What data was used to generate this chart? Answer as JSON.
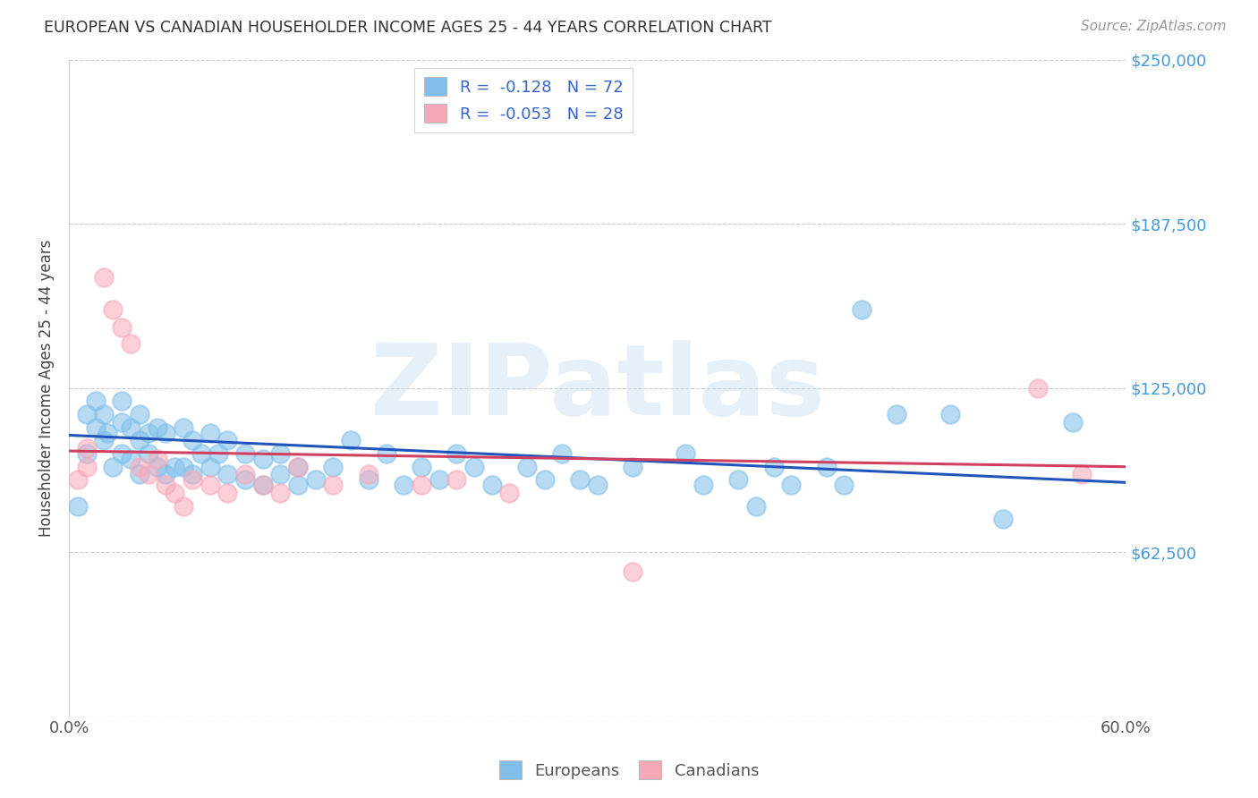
{
  "title": "EUROPEAN VS CANADIAN HOUSEHOLDER INCOME AGES 25 - 44 YEARS CORRELATION CHART",
  "source": "Source: ZipAtlas.com",
  "ylabel": "Householder Income Ages 25 - 44 years",
  "xlim": [
    0.0,
    0.6
  ],
  "ylim": [
    0,
    250000
  ],
  "yticks": [
    0,
    62500,
    125000,
    187500,
    250000
  ],
  "ytick_labels": [
    "",
    "$62,500",
    "$125,000",
    "$187,500",
    "$250,000"
  ],
  "xticks": [
    0.0,
    0.1,
    0.2,
    0.3,
    0.4,
    0.5,
    0.6
  ],
  "xtick_labels": [
    "0.0%",
    "",
    "",
    "",
    "",
    "",
    "60.0%"
  ],
  "europeans_R": -0.128,
  "europeans_N": 72,
  "canadians_R": -0.053,
  "canadians_N": 28,
  "european_color": "#7fbfea",
  "canadian_color": "#f9a8b8",
  "regression_blue": "#2255bb",
  "regression_pink": "#d04060",
  "background_color": "#ffffff",
  "watermark": "ZIPatlas",
  "eu_intercept": 107000,
  "eu_slope": -30000,
  "ca_intercept": 101000,
  "ca_slope": -10000,
  "europeans_x": [
    0.005,
    0.01,
    0.01,
    0.015,
    0.015,
    0.02,
    0.02,
    0.022,
    0.025,
    0.03,
    0.03,
    0.03,
    0.035,
    0.035,
    0.04,
    0.04,
    0.04,
    0.045,
    0.045,
    0.05,
    0.05,
    0.055,
    0.055,
    0.06,
    0.065,
    0.065,
    0.07,
    0.07,
    0.075,
    0.08,
    0.08,
    0.085,
    0.09,
    0.09,
    0.1,
    0.1,
    0.11,
    0.11,
    0.12,
    0.12,
    0.13,
    0.13,
    0.14,
    0.15,
    0.16,
    0.17,
    0.18,
    0.19,
    0.2,
    0.21,
    0.22,
    0.23,
    0.24,
    0.26,
    0.27,
    0.28,
    0.29,
    0.3,
    0.32,
    0.35,
    0.36,
    0.38,
    0.39,
    0.4,
    0.41,
    0.43,
    0.44,
    0.45,
    0.47,
    0.5,
    0.53,
    0.57
  ],
  "europeans_y": [
    80000,
    115000,
    100000,
    120000,
    110000,
    115000,
    105000,
    108000,
    95000,
    120000,
    112000,
    100000,
    110000,
    98000,
    115000,
    105000,
    92000,
    108000,
    100000,
    110000,
    95000,
    108000,
    92000,
    95000,
    110000,
    95000,
    105000,
    92000,
    100000,
    108000,
    95000,
    100000,
    105000,
    92000,
    100000,
    90000,
    98000,
    88000,
    100000,
    92000,
    95000,
    88000,
    90000,
    95000,
    105000,
    90000,
    100000,
    88000,
    95000,
    90000,
    100000,
    95000,
    88000,
    95000,
    90000,
    100000,
    90000,
    88000,
    95000,
    100000,
    88000,
    90000,
    80000,
    95000,
    88000,
    95000,
    88000,
    155000,
    115000,
    115000,
    75000,
    112000
  ],
  "canadians_x": [
    0.005,
    0.01,
    0.01,
    0.02,
    0.025,
    0.03,
    0.035,
    0.04,
    0.045,
    0.05,
    0.055,
    0.06,
    0.065,
    0.07,
    0.08,
    0.09,
    0.1,
    0.11,
    0.12,
    0.13,
    0.15,
    0.17,
    0.2,
    0.22,
    0.25,
    0.32,
    0.55,
    0.575
  ],
  "canadians_y": [
    90000,
    102000,
    95000,
    167000,
    155000,
    148000,
    142000,
    95000,
    92000,
    98000,
    88000,
    85000,
    80000,
    90000,
    88000,
    85000,
    92000,
    88000,
    85000,
    95000,
    88000,
    92000,
    88000,
    90000,
    85000,
    55000,
    125000,
    92000
  ]
}
